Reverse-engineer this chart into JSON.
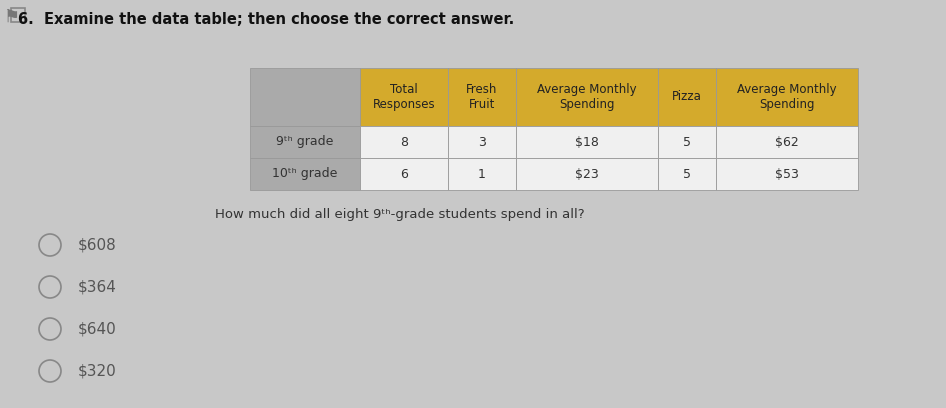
{
  "title": "6.  Examine the data table; then choose the correct answer.",
  "question": "How much did all eight 9ᵗʰ-grade students spend in all?",
  "header_cols": [
    "",
    "Total\nResponses",
    "Fresh\nFruit",
    "Average Monthly\nSpending",
    "Pizza",
    "Average Monthly\nSpending"
  ],
  "rows": [
    [
      "9ᵗʰ grade",
      "8",
      "3",
      "$18",
      "5",
      "$62"
    ],
    [
      "10ᵗʰ grade",
      "6",
      "1",
      "$23",
      "5",
      "$53"
    ]
  ],
  "choices": [
    "$608",
    "$364",
    "$640",
    "$320"
  ],
  "header_bg": "#D4AA2C",
  "row_label_bg": "#AAAAAA",
  "data_bg": "#F0F0F0",
  "bg_color": "#C8C8C8",
  "title_color": "#111111",
  "question_color": "#333333",
  "choice_color": "#555555",
  "cell_text_color": "#333333",
  "border_color": "#999999"
}
